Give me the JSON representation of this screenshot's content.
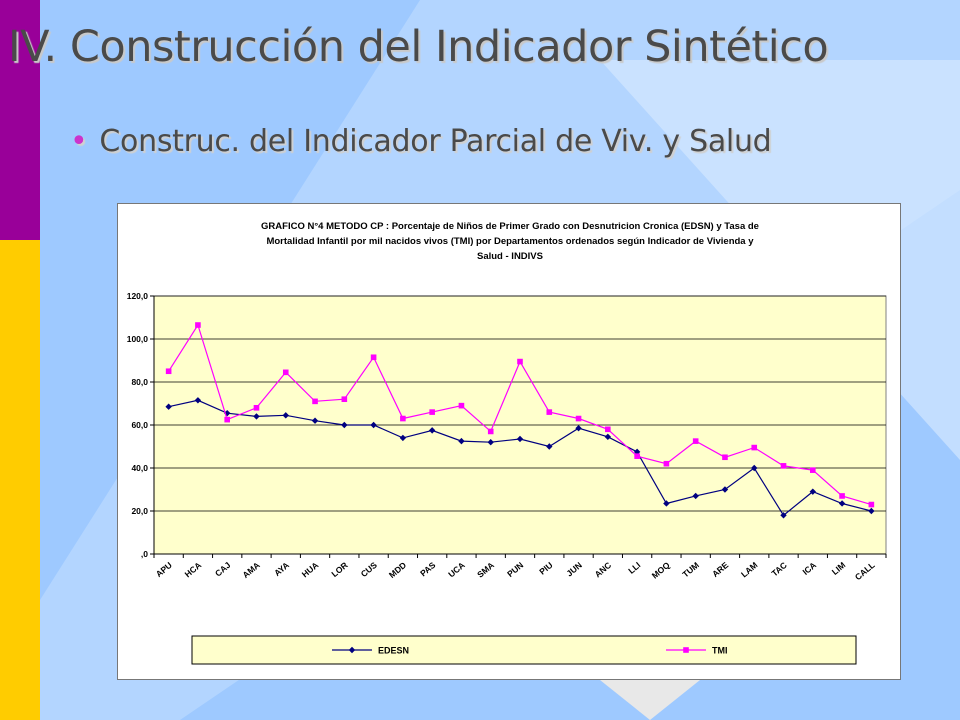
{
  "slide": {
    "title": "IV. Construcción del Indicador Sintético",
    "bullet": "Construc. del Indicador Parcial de Viv. y Salud"
  },
  "colors": {
    "background": "#9ec9ff",
    "left_bar_top": "#990099",
    "left_bar_bottom": "#ffcc00",
    "plot_area": "#ffffcc",
    "series_edesn": "#000080",
    "series_tmi": "#ff00ff"
  },
  "chart_data": {
    "type": "line",
    "title_lines": [
      "GRAFICO N°4 METODO CP : Porcentaje de Niños de Primer Grado con Desnutricion Cronica (EDSN) y Tasa de",
      "Mortalidad Infantil por mil nacidos vivos (TMI)  por Departamentos ordenados según Indicador de Vivienda y",
      "Salud - INDIVS"
    ],
    "categories": [
      "APU",
      "HCA",
      "CAJ",
      "AMA",
      "AYA",
      "HUA",
      "LOR",
      "CUS",
      "MDD",
      "PAS",
      "UCA",
      "SMA",
      "PUN",
      "PIU",
      "JUN",
      "ANC",
      "LLI",
      "MOQ",
      "TUM",
      "ARE",
      "LAM",
      "TAC",
      "ICA",
      "LIM",
      "CALL"
    ],
    "series": [
      {
        "name": "EDESN",
        "marker": "diamond",
        "values": [
          68.5,
          71.5,
          65.5,
          64,
          64.5,
          62,
          60,
          60,
          54,
          57.5,
          52.5,
          52,
          53.5,
          50,
          58.5,
          54.5,
          47.5,
          23.5,
          27,
          30,
          40,
          18,
          29,
          23.5,
          20
        ]
      },
      {
        "name": "TMI",
        "marker": "square",
        "values": [
          85,
          106.5,
          62.5,
          68,
          84.5,
          71,
          72,
          91.5,
          63,
          66,
          69,
          57,
          89.5,
          66,
          63,
          58,
          45.5,
          42,
          52.5,
          45,
          49.5,
          41,
          39,
          27,
          23
        ]
      }
    ],
    "ylim": [
      0,
      120
    ],
    "yticks": [
      0,
      20,
      40,
      60,
      80,
      100,
      120
    ],
    "ytick_labels": [
      ",0",
      "20,0",
      "40,0",
      "60,0",
      "80,0",
      "100,0",
      "120,0"
    ],
    "grid": true,
    "legend_position": "bottom"
  }
}
